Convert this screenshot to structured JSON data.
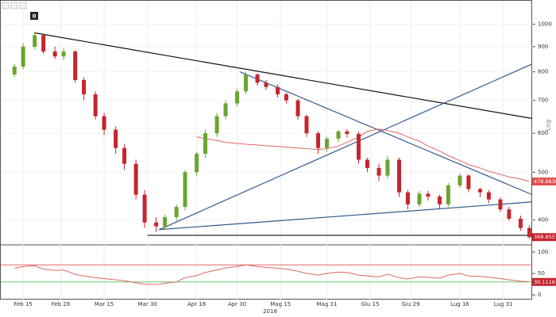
{
  "chart_data": {
    "type": "candlestick",
    "toolbar_label": "0",
    "scale_label": "Log",
    "xlabel": "2018",
    "x": [
      "2018-02-12",
      "2018-02-15",
      "2018-02-19",
      "2018-02-22",
      "2018-02-26",
      "2018-03-01",
      "2018-03-05",
      "2018-03-08",
      "2018-03-12",
      "2018-03-15",
      "2018-03-19",
      "2018-03-22",
      "2018-03-26",
      "2018-03-29",
      "2018-04-02",
      "2018-04-05",
      "2018-04-09",
      "2018-04-12",
      "2018-04-16",
      "2018-04-19",
      "2018-04-23",
      "2018-04-26",
      "2018-04-30",
      "2018-05-03",
      "2018-05-07",
      "2018-05-10",
      "2018-05-14",
      "2018-05-17",
      "2018-05-21",
      "2018-05-24",
      "2018-05-28",
      "2018-05-31",
      "2018-06-04",
      "2018-06-07",
      "2018-06-11",
      "2018-06-14",
      "2018-06-18",
      "2018-06-21",
      "2018-06-25",
      "2018-06-28",
      "2018-07-02",
      "2018-07-05",
      "2018-07-09",
      "2018-07-12",
      "2018-07-16",
      "2018-07-19",
      "2018-07-23",
      "2018-07-26",
      "2018-07-30",
      "2018-08-02",
      "2018-08-06",
      "2018-08-09"
    ],
    "open": [
      790,
      820,
      900,
      950,
      880,
      860,
      880,
      770,
      720,
      650,
      610,
      560,
      520,
      450,
      395,
      388,
      405,
      425,
      500,
      545,
      600,
      650,
      690,
      730,
      790,
      760,
      745,
      720,
      700,
      650,
      600,
      560,
      585,
      605,
      598,
      530,
      510,
      492,
      530,
      455,
      430,
      452,
      446,
      430,
      470,
      492,
      462,
      455,
      440,
      420,
      402,
      385
    ],
    "high": [
      830,
      915,
      965,
      955,
      900,
      895,
      885,
      780,
      730,
      660,
      620,
      570,
      530,
      460,
      405,
      410,
      430,
      505,
      550,
      610,
      660,
      700,
      740,
      800,
      795,
      770,
      755,
      725,
      705,
      655,
      605,
      590,
      610,
      612,
      605,
      535,
      520,
      540,
      535,
      460,
      458,
      458,
      450,
      475,
      498,
      495,
      465,
      460,
      445,
      425,
      408,
      390
    ],
    "low": [
      780,
      810,
      890,
      870,
      850,
      845,
      760,
      700,
      640,
      595,
      545,
      505,
      440,
      385,
      378,
      382,
      398,
      418,
      490,
      535,
      590,
      640,
      680,
      720,
      750,
      735,
      710,
      690,
      640,
      590,
      545,
      550,
      575,
      588,
      520,
      500,
      480,
      485,
      445,
      420,
      425,
      438,
      420,
      425,
      465,
      455,
      445,
      432,
      415,
      398,
      380,
      366
    ],
    "close": [
      820,
      900,
      950,
      880,
      860,
      880,
      770,
      720,
      650,
      610,
      560,
      520,
      450,
      395,
      388,
      405,
      425,
      500,
      545,
      600,
      650,
      690,
      730,
      790,
      760,
      745,
      720,
      700,
      650,
      600,
      560,
      585,
      605,
      598,
      530,
      510,
      492,
      530,
      455,
      430,
      452,
      446,
      430,
      470,
      492,
      462,
      455,
      440,
      420,
      402,
      385,
      368.8557
    ],
    "up_color": "#6aa531",
    "down_color": "#c6252f",
    "ma": {
      "color": "#e06666",
      "values": [
        null,
        null,
        null,
        null,
        null,
        null,
        null,
        null,
        null,
        null,
        null,
        null,
        null,
        null,
        null,
        null,
        null,
        null,
        590,
        585,
        580,
        575,
        572,
        570,
        568,
        566,
        564,
        562,
        560,
        558,
        556,
        558,
        565,
        575,
        590,
        605,
        612,
        608,
        600,
        590,
        578,
        565,
        552,
        540,
        528,
        518,
        510,
        502,
        495,
        489,
        484,
        478.6636
      ]
    },
    "price_label": 368.8557,
    "ma_label": 478.6636,
    "trendlines": [
      {
        "color": "#111111",
        "x": [
          "2018-02-19",
          "2018-08-10"
        ],
        "y": [
          960,
          643
        ]
      },
      {
        "color": "#111111",
        "x": [
          "2018-03-30",
          "2018-08-10"
        ],
        "y": [
          372,
          372
        ]
      },
      {
        "color": "#2f5b8f",
        "x": [
          "2018-04-03",
          "2018-08-10"
        ],
        "y": [
          382,
          830
        ]
      },
      {
        "color": "#2f5b8f",
        "x": [
          "2018-04-03",
          "2018-08-10"
        ],
        "y": [
          382,
          435
        ]
      },
      {
        "color": "#2f5b8f",
        "x": [
          "2018-05-01",
          "2018-08-10"
        ],
        "y": [
          800,
          450
        ]
      }
    ],
    "xlim": [
      "2018-02-07",
      "2018-08-10"
    ],
    "xticks": [
      {
        "value": "2018-02-15",
        "label": "Feb 15"
      },
      {
        "value": "2018-02-28",
        "label": "Feb 28"
      },
      {
        "value": "2018-03-15",
        "label": "Mar 15"
      },
      {
        "value": "2018-03-30",
        "label": "Mar 30"
      },
      {
        "value": "2018-04-16",
        "label": "Apr 16"
      },
      {
        "value": "2018-04-30",
        "label": "Apr 30"
      },
      {
        "value": "2018-05-15",
        "label": "Mag 15"
      },
      {
        "value": "2018-05-31",
        "label": "Mag 31"
      },
      {
        "value": "2018-06-15",
        "label": "Giu 15"
      },
      {
        "value": "2018-06-29",
        "label": "Giu 29"
      },
      {
        "value": "2018-07-16",
        "label": "Lug 16"
      },
      {
        "value": "2018-07-31",
        "label": "Lug 31"
      }
    ],
    "ylim": [
      357,
      1120
    ],
    "log": true,
    "yticks": [
      400,
      500,
      600,
      700,
      800,
      900,
      1000
    ],
    "rsi": {
      "color": "#e06666",
      "values": [
        62,
        66,
        68,
        60,
        57,
        58,
        48,
        44,
        40,
        38,
        35,
        33,
        28,
        25,
        24,
        27,
        30,
        40,
        45,
        52,
        58,
        63,
        66,
        70,
        66,
        64,
        62,
        60,
        55,
        50,
        46,
        50,
        53,
        52,
        46,
        44,
        42,
        48,
        40,
        37,
        42,
        41,
        39,
        46,
        50,
        44,
        43,
        41,
        38,
        35,
        32,
        30.1116
      ],
      "ylim": [
        -11,
        111
      ],
      "yticks": [
        0,
        50,
        100
      ],
      "levels": [
        {
          "value": 70,
          "color": "#e05050"
        },
        {
          "value": 30,
          "color": "#50c050"
        }
      ],
      "label": 30.1116
    }
  }
}
